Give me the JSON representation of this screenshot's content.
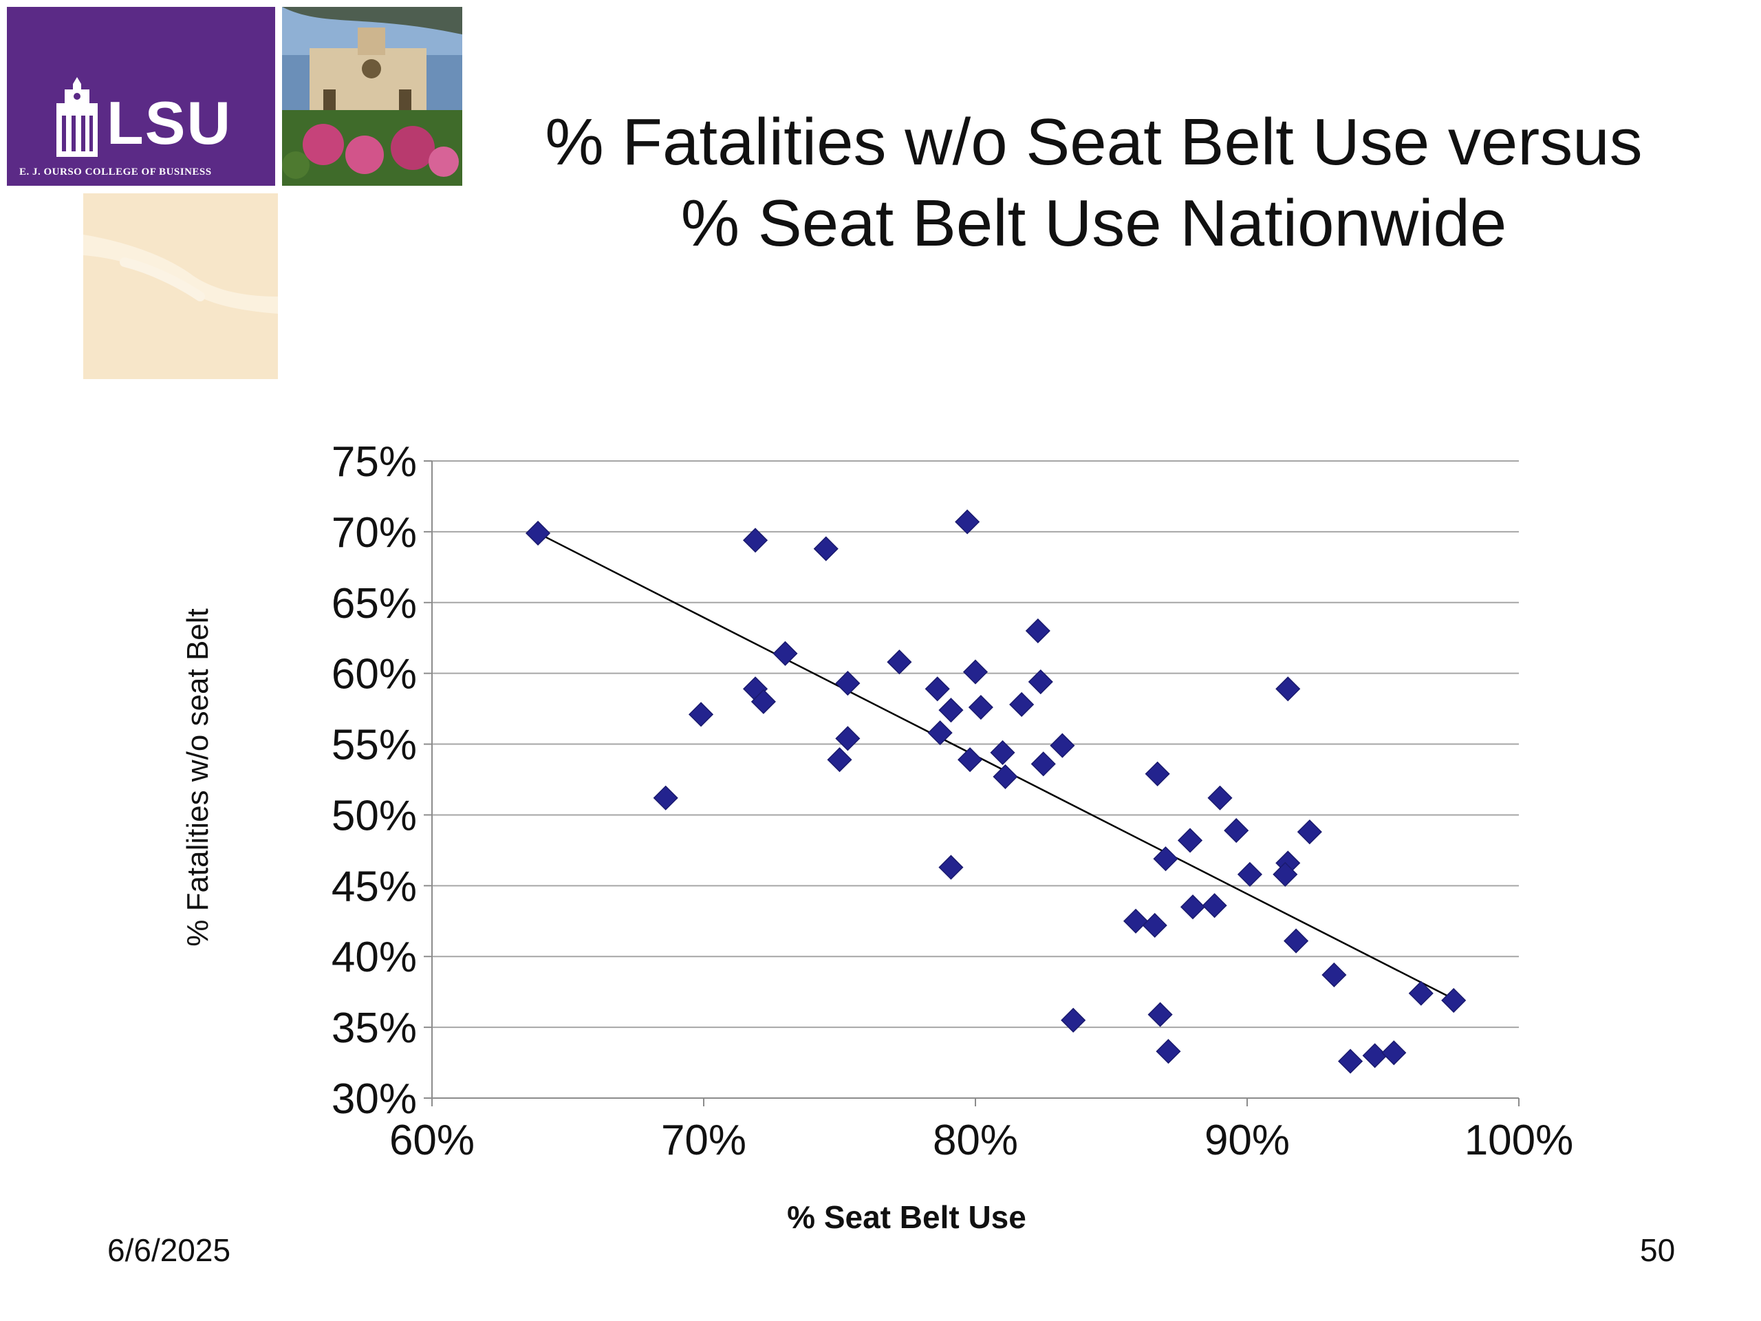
{
  "slide": {
    "title_line1": "% Fatalities w/o Seat Belt Use versus",
    "title_line2": "% Seat Belt Use Nationwide",
    "date": "6/6/2025",
    "page_number": "50"
  },
  "logo": {
    "brand": "LSU",
    "college": "E. J. OURSO COLLEGE OF BUSINESS",
    "brand_color": "#5b2a86",
    "accent_color": "#f7e6c9"
  },
  "chart_data": {
    "type": "scatter",
    "xlabel": "% Seat Belt Use",
    "ylabel": "% Fatalities w/o seat Belt",
    "xlim": [
      0.6,
      1.0
    ],
    "ylim": [
      0.3,
      0.75
    ],
    "x_ticks": [
      0.6,
      0.7,
      0.8,
      0.9,
      1.0
    ],
    "x_tick_labels": [
      "60%",
      "70%",
      "80%",
      "90%",
      "100%"
    ],
    "y_ticks": [
      0.3,
      0.35,
      0.4,
      0.45,
      0.5,
      0.55,
      0.6,
      0.65,
      0.7,
      0.75
    ],
    "y_tick_labels": [
      "30%",
      "35%",
      "40%",
      "45%",
      "50%",
      "55%",
      "60%",
      "65%",
      "70%",
      "75%"
    ],
    "grid": true,
    "marker": "diamond",
    "marker_color": "#23238e",
    "points": [
      [
        0.639,
        0.699
      ],
      [
        0.719,
        0.694
      ],
      [
        0.745,
        0.688
      ],
      [
        0.797,
        0.707
      ],
      [
        0.73,
        0.614
      ],
      [
        0.772,
        0.608
      ],
      [
        0.823,
        0.63
      ],
      [
        0.719,
        0.589
      ],
      [
        0.722,
        0.58
      ],
      [
        0.753,
        0.593
      ],
      [
        0.786,
        0.589
      ],
      [
        0.8,
        0.601
      ],
      [
        0.824,
        0.594
      ],
      [
        0.699,
        0.571
      ],
      [
        0.791,
        0.574
      ],
      [
        0.802,
        0.576
      ],
      [
        0.817,
        0.578
      ],
      [
        0.787,
        0.558
      ],
      [
        0.753,
        0.554
      ],
      [
        0.75,
        0.539
      ],
      [
        0.798,
        0.539
      ],
      [
        0.81,
        0.544
      ],
      [
        0.825,
        0.536
      ],
      [
        0.832,
        0.549
      ],
      [
        0.811,
        0.527
      ],
      [
        0.686,
        0.512
      ],
      [
        0.867,
        0.529
      ],
      [
        0.89,
        0.512
      ],
      [
        0.896,
        0.489
      ],
      [
        0.923,
        0.488
      ],
      [
        0.879,
        0.482
      ],
      [
        0.87,
        0.469
      ],
      [
        0.915,
        0.466
      ],
      [
        0.901,
        0.458
      ],
      [
        0.914,
        0.458
      ],
      [
        0.791,
        0.463
      ],
      [
        0.888,
        0.436
      ],
      [
        0.88,
        0.435
      ],
      [
        0.859,
        0.425
      ],
      [
        0.866,
        0.422
      ],
      [
        0.918,
        0.411
      ],
      [
        0.932,
        0.387
      ],
      [
        0.964,
        0.374
      ],
      [
        0.976,
        0.369
      ],
      [
        0.836,
        0.355
      ],
      [
        0.868,
        0.359
      ],
      [
        0.871,
        0.333
      ],
      [
        0.938,
        0.326
      ],
      [
        0.947,
        0.33
      ],
      [
        0.954,
        0.332
      ],
      [
        0.915,
        0.589
      ]
    ],
    "trendline": {
      "x": [
        0.639,
        0.976
      ],
      "y": [
        0.699,
        0.37
      ],
      "color": "#000000"
    }
  }
}
